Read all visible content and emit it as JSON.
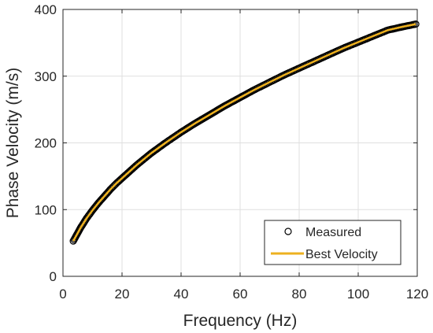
{
  "chart_data": {
    "type": "scatter",
    "title": "",
    "xlabel": "Frequency (Hz)",
    "ylabel": "Phase Velocity (m/s)",
    "xlim": [
      0,
      120
    ],
    "ylim": [
      0,
      400
    ],
    "xticks": [
      0,
      20,
      40,
      60,
      80,
      100,
      120
    ],
    "yticks": [
      0,
      100,
      200,
      300,
      400
    ],
    "grid": true,
    "legend_position": "bottom-right",
    "colors": {
      "measured": "#000000",
      "best": "#EDB120",
      "grid": "#DFDFDF",
      "axis": "#262626"
    },
    "series": [
      {
        "name": "Measured",
        "style": "markers",
        "x": [
          3.5,
          4,
          5,
          6,
          7,
          8,
          10,
          12,
          14,
          16,
          18,
          20,
          25,
          30,
          35,
          40,
          45,
          50,
          55,
          60,
          65,
          70,
          75,
          80,
          85,
          90,
          95,
          100,
          105,
          110,
          115,
          119.5
        ],
        "y": [
          53,
          57,
          65,
          73,
          80,
          87,
          99,
          110,
          120,
          130,
          139,
          147,
          167,
          185,
          201,
          216,
          230,
          243,
          256,
          268,
          280,
          291,
          302,
          312,
          322,
          332,
          342,
          351,
          360,
          369,
          374,
          378
        ]
      },
      {
        "name": "Best Velocity",
        "style": "line",
        "x": [
          3.5,
          4,
          5,
          6,
          7,
          8,
          10,
          12,
          14,
          16,
          18,
          20,
          25,
          30,
          35,
          40,
          45,
          50,
          55,
          60,
          65,
          70,
          75,
          80,
          85,
          90,
          95,
          100,
          105,
          110,
          115,
          119.5
        ],
        "y": [
          53,
          57,
          65,
          73,
          80,
          87,
          99,
          110,
          120,
          130,
          139,
          147,
          167,
          185,
          201,
          216,
          230,
          243,
          256,
          268,
          280,
          291,
          302,
          312,
          322,
          332,
          342,
          351,
          360,
          369,
          374,
          378
        ]
      }
    ]
  }
}
